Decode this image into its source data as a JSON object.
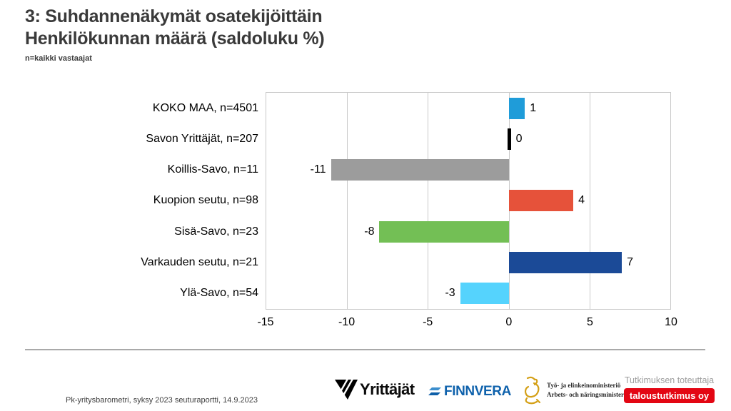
{
  "title": {
    "line1": "3: Suhdannenäkymät osatekijöittäin",
    "line2": "Henkilökunnan määrä (saldoluku %)",
    "subtitle": "n=kaikki vastaajat"
  },
  "chart_data": {
    "type": "bar",
    "orientation": "horizontal",
    "title": "Henkilökunnan määrä (saldoluku %)",
    "categories": [
      "KOKO MAA, n=4501",
      "Savon Yrittäjät, n=207",
      "Koillis-Savo, n=11",
      "Kuopion seutu, n=98",
      "Sisä-Savo, n=23",
      "Varkauden seutu, n=21",
      "Ylä-Savo, n=54"
    ],
    "values": [
      1,
      0,
      -11,
      4,
      -8,
      7,
      -3
    ],
    "bar_colors": [
      "#1f9cd9",
      "#000000",
      "#9c9c9c",
      "#e6523a",
      "#73bf55",
      "#1b4a97",
      "#55d3fd"
    ],
    "xlim": [
      -15,
      10
    ],
    "x_ticks": [
      -15,
      -10,
      -5,
      0,
      5,
      10
    ],
    "grid": "vertical",
    "legend": "none",
    "value_labels_shown": true,
    "plot_border_color": "#c9c9c9"
  },
  "footer": {
    "source_text": "Pk-yritysbarometri,  syksy 2023 seuturaportti,  14.9.2023",
    "logos": {
      "yrittajat": "Yrittäjät",
      "finnvera": "FINNVERA",
      "ministry_line1": "Työ- ja elinkeinoministeriö",
      "ministry_line2": "Arbets- och näringsministeriet",
      "research_label": "Tutkimuksen toteuttaja",
      "research_badge": "taloustutkimus oy",
      "finnvera_blue": "#0f62ac",
      "badge_red": "#e30613",
      "ministry_gold": "#d4a017"
    }
  }
}
